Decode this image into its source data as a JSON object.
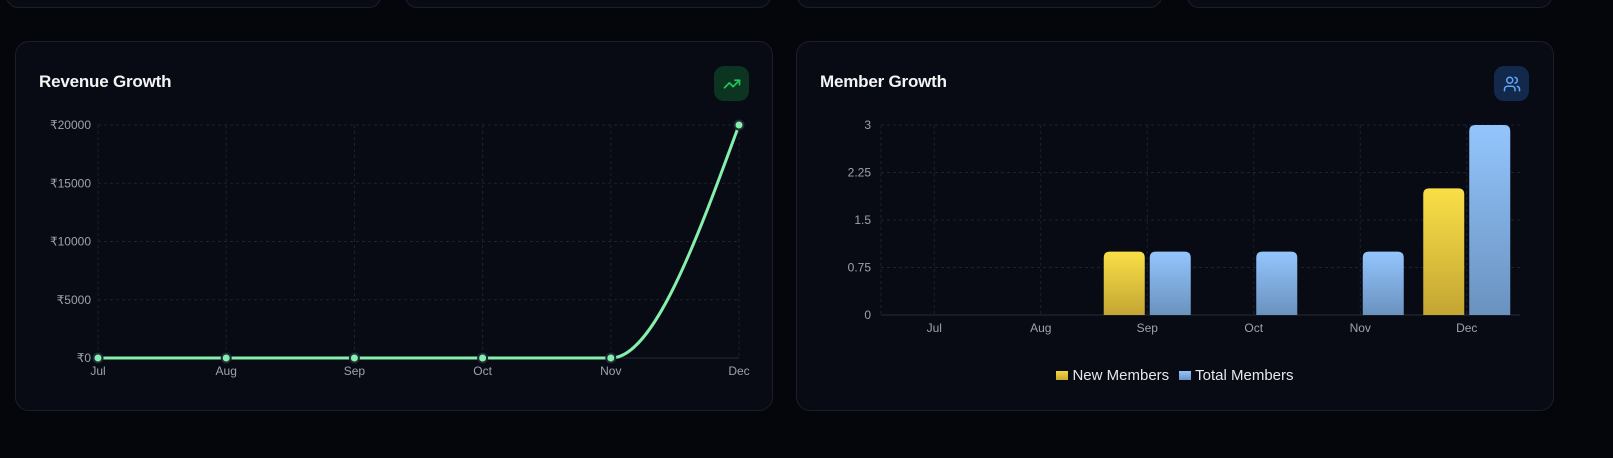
{
  "colors": {
    "background": "#04060c",
    "card": "#080b13",
    "revenue_line": "#86efac",
    "new_members": "#f5d742",
    "total_members": "#93c5fd",
    "trend_icon": "#22c55e",
    "users_icon": "#60a5fa"
  },
  "revenue_card": {
    "title": "Revenue Growth",
    "icon": "trending-up-icon"
  },
  "members_card": {
    "title": "Member Growth",
    "icon": "users-icon",
    "legend": [
      {
        "label": "New Members",
        "color": "#f5d742"
      },
      {
        "label": "Total Members",
        "color": "#93c5fd"
      }
    ]
  },
  "chart_data": [
    {
      "type": "line",
      "title": "Revenue Growth",
      "categories": [
        "Jul",
        "Aug",
        "Sep",
        "Oct",
        "Nov",
        "Dec"
      ],
      "series": [
        {
          "name": "Revenue",
          "values": [
            0,
            0,
            0,
            0,
            0,
            20000
          ]
        }
      ],
      "y_ticks": [
        "₹0",
        "₹5000",
        "₹10000",
        "₹15000",
        "₹20000"
      ],
      "ylim": [
        0,
        20000
      ],
      "xlabel": "",
      "ylabel": "",
      "grid": true,
      "curve": "monotone"
    },
    {
      "type": "bar",
      "title": "Member Growth",
      "categories": [
        "Jul",
        "Aug",
        "Sep",
        "Oct",
        "Nov",
        "Dec"
      ],
      "series": [
        {
          "name": "New Members",
          "values": [
            0,
            0,
            1,
            0,
            0,
            2
          ]
        },
        {
          "name": "Total Members",
          "values": [
            0,
            0,
            1,
            1,
            1,
            3
          ]
        }
      ],
      "y_ticks": [
        "0",
        "0.75",
        "1.5",
        "2.25",
        "3"
      ],
      "ylim": [
        0,
        3
      ],
      "xlabel": "",
      "ylabel": "",
      "grid": true,
      "legend_position": "bottom"
    }
  ]
}
